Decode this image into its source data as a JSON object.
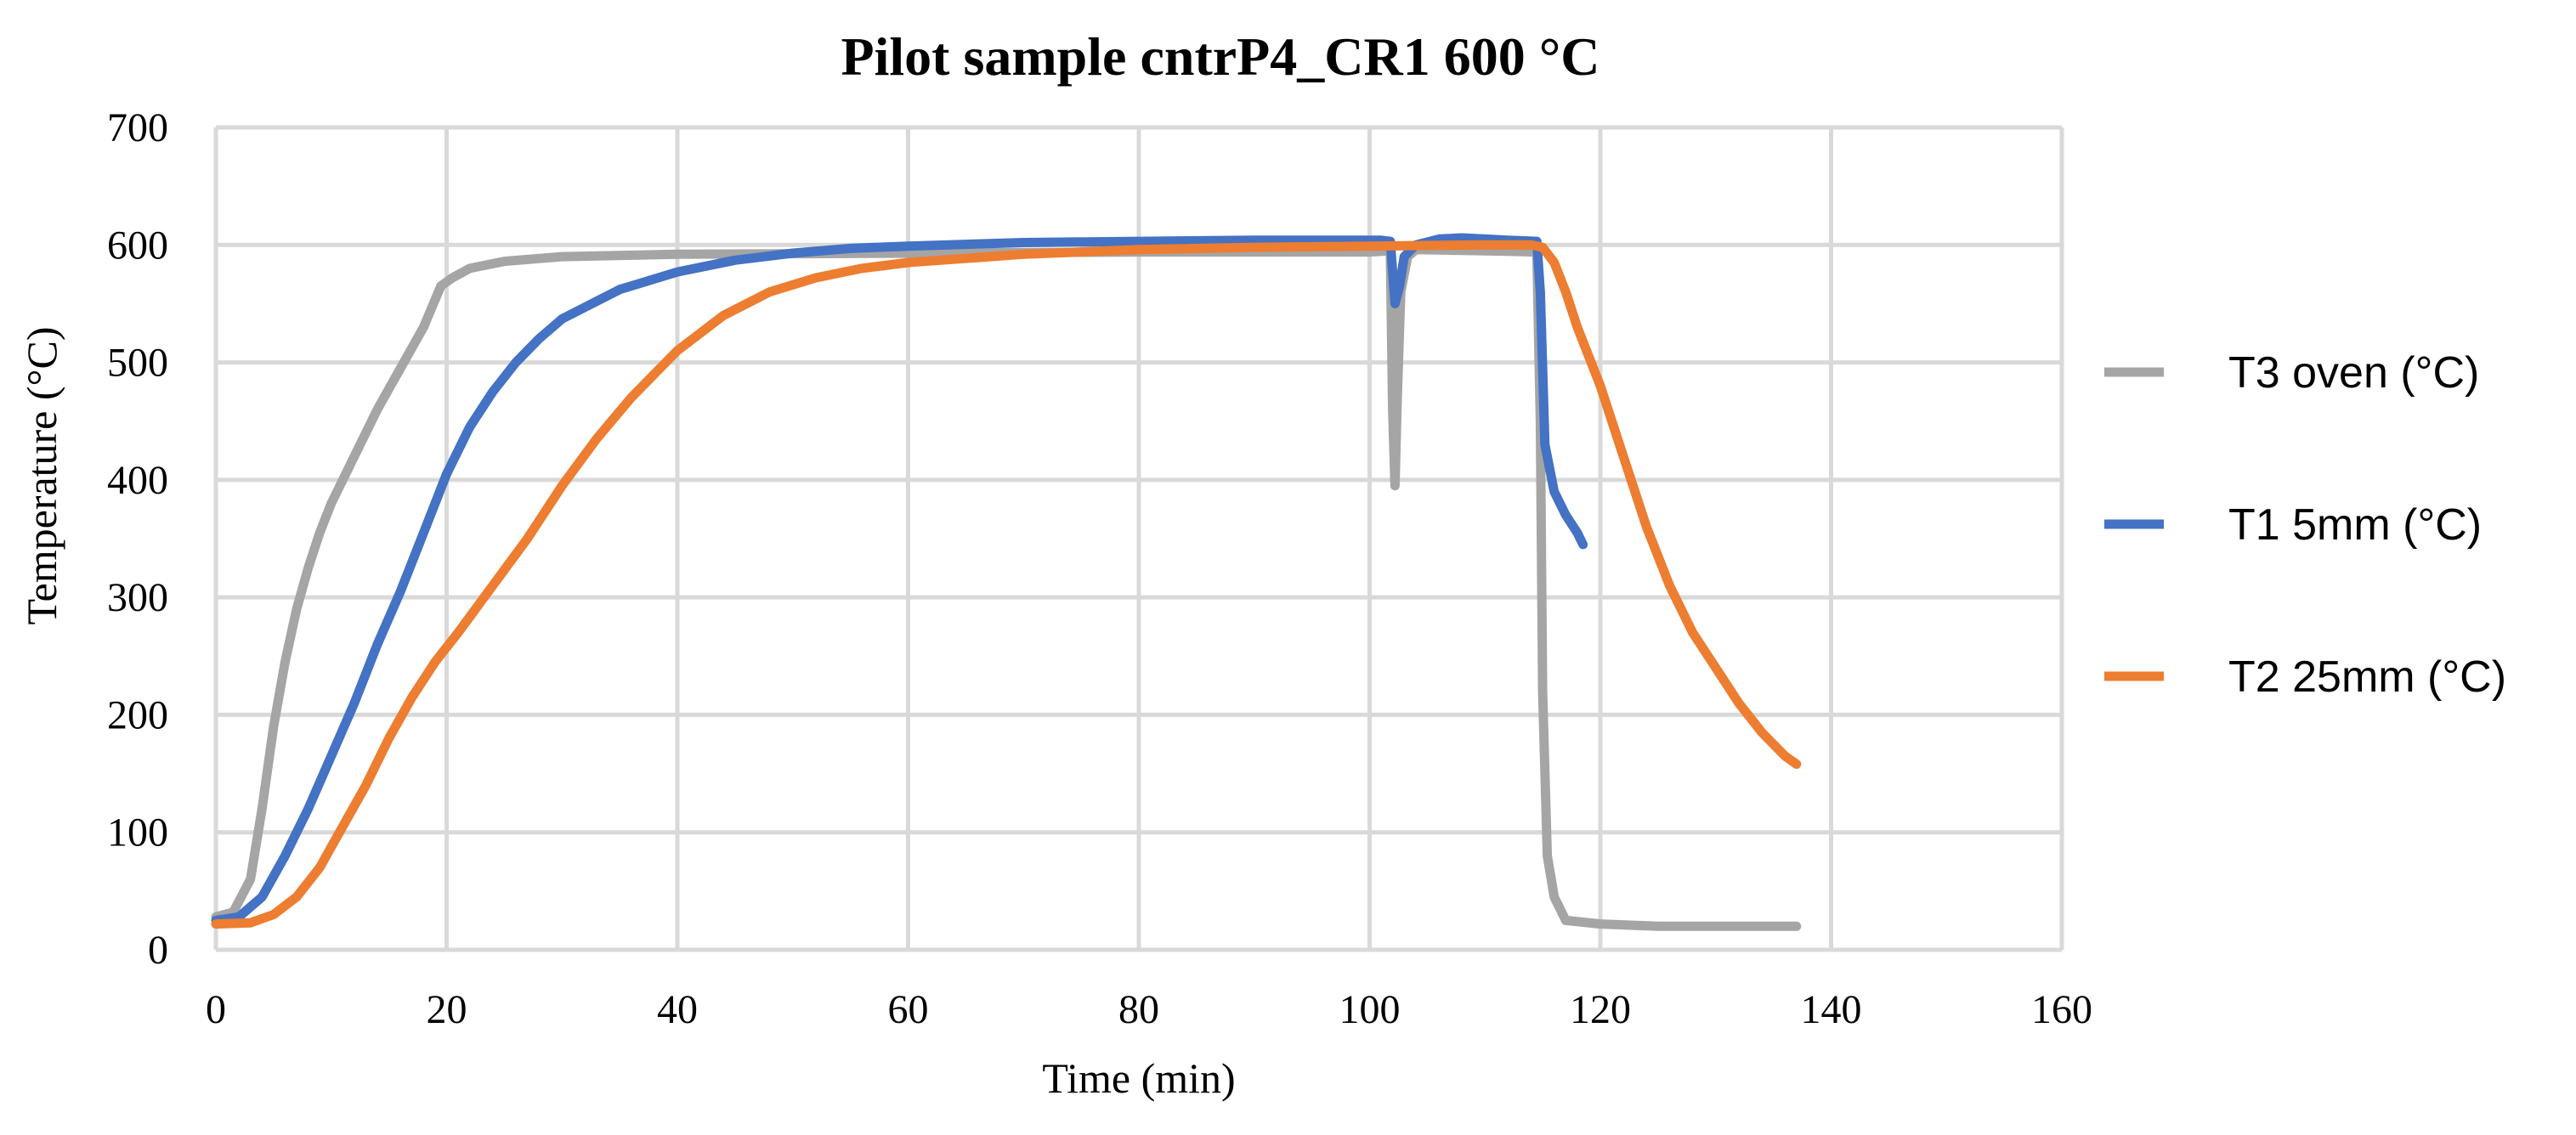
{
  "chart_data": {
    "type": "line",
    "title": "Pilot sample cntrP4_CR1 600 °C",
    "xlabel": "Time (min)",
    "ylabel": "Temperature (°C)",
    "xlim": [
      0,
      160
    ],
    "ylim": [
      0,
      700
    ],
    "xticks": [
      0,
      20,
      40,
      60,
      80,
      100,
      120,
      140,
      160
    ],
    "yticks": [
      0,
      100,
      200,
      300,
      400,
      500,
      600,
      700
    ],
    "grid": true,
    "legend_position": "right",
    "series": [
      {
        "name": "T3 oven  (°C)",
        "color": "#a5a5a5",
        "points": [
          [
            0,
            28
          ],
          [
            1.5,
            32
          ],
          [
            3,
            60
          ],
          [
            4,
            120
          ],
          [
            5,
            190
          ],
          [
            6,
            245
          ],
          [
            7,
            290
          ],
          [
            8,
            325
          ],
          [
            9,
            355
          ],
          [
            10,
            380
          ],
          [
            12,
            420
          ],
          [
            14,
            460
          ],
          [
            16,
            495
          ],
          [
            18,
            530
          ],
          [
            19.5,
            565
          ],
          [
            20.5,
            572
          ],
          [
            22,
            580
          ],
          [
            25,
            586
          ],
          [
            30,
            590
          ],
          [
            40,
            592
          ],
          [
            60,
            593
          ],
          [
            80,
            594
          ],
          [
            100,
            594
          ],
          [
            101.8,
            595
          ],
          [
            102,
            460
          ],
          [
            102.2,
            395
          ],
          [
            102.4,
            470
          ],
          [
            102.7,
            560
          ],
          [
            103.3,
            590
          ],
          [
            104,
            596
          ],
          [
            110,
            595
          ],
          [
            114.5,
            594
          ],
          [
            114.8,
            450
          ],
          [
            115,
            220
          ],
          [
            115.4,
            80
          ],
          [
            116,
            45
          ],
          [
            117,
            25
          ],
          [
            120,
            22
          ],
          [
            125,
            20
          ],
          [
            137,
            20
          ]
        ]
      },
      {
        "name": "T1 5mm (°C)",
        "color": "#4472c4",
        "points": [
          [
            0,
            25
          ],
          [
            2,
            28
          ],
          [
            4,
            45
          ],
          [
            6,
            80
          ],
          [
            8,
            120
          ],
          [
            10,
            165
          ],
          [
            12,
            210
          ],
          [
            14,
            260
          ],
          [
            16,
            305
          ],
          [
            18,
            355
          ],
          [
            20,
            405
          ],
          [
            22,
            445
          ],
          [
            24,
            475
          ],
          [
            26,
            500
          ],
          [
            28,
            520
          ],
          [
            30,
            537
          ],
          [
            35,
            562
          ],
          [
            40,
            577
          ],
          [
            45,
            587
          ],
          [
            50,
            593
          ],
          [
            55,
            597
          ],
          [
            60,
            599
          ],
          [
            70,
            602
          ],
          [
            80,
            603
          ],
          [
            90,
            604
          ],
          [
            101,
            604
          ],
          [
            101.8,
            603
          ],
          [
            102.2,
            550
          ],
          [
            102.6,
            565
          ],
          [
            103,
            590
          ],
          [
            104,
            600
          ],
          [
            106,
            605
          ],
          [
            108,
            606
          ],
          [
            110,
            605
          ],
          [
            112,
            604
          ],
          [
            114.5,
            603
          ],
          [
            114.8,
            560
          ],
          [
            115.2,
            430
          ],
          [
            116,
            390
          ],
          [
            117,
            370
          ],
          [
            118,
            355
          ],
          [
            118.5,
            345
          ]
        ]
      },
      {
        "name": "T2 25mm (°C)",
        "color": "#ed7d31",
        "points": [
          [
            0,
            22
          ],
          [
            3,
            23
          ],
          [
            5,
            30
          ],
          [
            7,
            45
          ],
          [
            9,
            70
          ],
          [
            11,
            105
          ],
          [
            13,
            140
          ],
          [
            15,
            180
          ],
          [
            17,
            215
          ],
          [
            19,
            245
          ],
          [
            21,
            270
          ],
          [
            24,
            310
          ],
          [
            27,
            350
          ],
          [
            30,
            395
          ],
          [
            33,
            435
          ],
          [
            36,
            470
          ],
          [
            40,
            510
          ],
          [
            44,
            540
          ],
          [
            48,
            560
          ],
          [
            52,
            572
          ],
          [
            56,
            580
          ],
          [
            60,
            585
          ],
          [
            70,
            592
          ],
          [
            80,
            596
          ],
          [
            90,
            598
          ],
          [
            100,
            599
          ],
          [
            110,
            600
          ],
          [
            114,
            600
          ],
          [
            115,
            598
          ],
          [
            116,
            585
          ],
          [
            117,
            560
          ],
          [
            118,
            530
          ],
          [
            120,
            480
          ],
          [
            122,
            420
          ],
          [
            124,
            360
          ],
          [
            126,
            310
          ],
          [
            128,
            270
          ],
          [
            130,
            240
          ],
          [
            132,
            210
          ],
          [
            134,
            185
          ],
          [
            136,
            165
          ],
          [
            137,
            158
          ]
        ]
      }
    ]
  }
}
